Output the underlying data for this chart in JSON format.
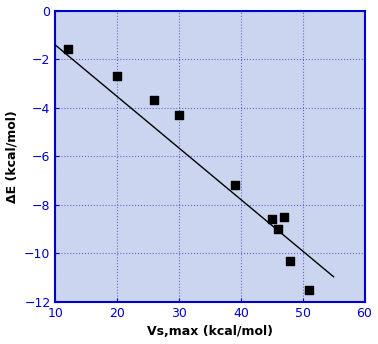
{
  "x": [
    12,
    20,
    26,
    30,
    39,
    45,
    46,
    47,
    48,
    51
  ],
  "y": [
    -1.6,
    -2.7,
    -3.7,
    -4.3,
    -7.2,
    -8.6,
    -9.0,
    -8.5,
    -10.3,
    -11.5
  ],
  "line_x": [
    10,
    55
  ],
  "line_slope": -0.212,
  "line_intercept": 0.7,
  "xlabel": "Vs,max (kcal/mol)",
  "ylabel": "ΔE (kcal/mol)",
  "xlim": [
    10,
    60
  ],
  "ylim": [
    -12,
    0
  ],
  "xticks": [
    10,
    20,
    30,
    40,
    50,
    60
  ],
  "yticks": [
    0,
    -2,
    -4,
    -6,
    -8,
    -10,
    -12
  ],
  "marker_color": "#000000",
  "marker_size": 6,
  "line_color": "#000000",
  "grid_color": "#6666cc",
  "grid_linestyle": "dotted",
  "background_color": "#ccd5f0",
  "figure_bg": "#ffffff",
  "spine_color": "#0000cc",
  "tick_color": "#0000cc",
  "label_color": "#000000",
  "label_fontsize": 9,
  "tick_fontsize": 9
}
